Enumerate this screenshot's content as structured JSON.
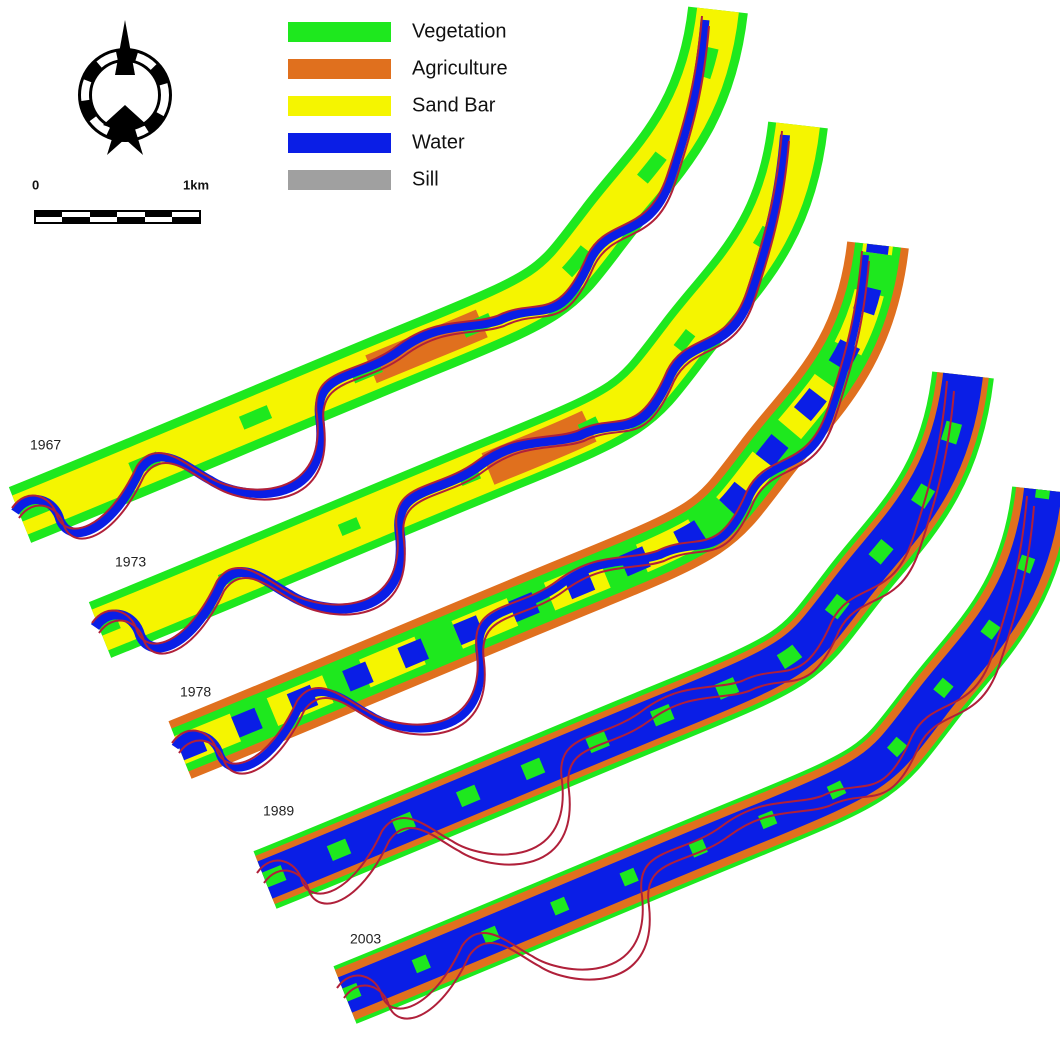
{
  "legend": {
    "items": [
      {
        "label": "Vegetation",
        "color": "#1ee81e"
      },
      {
        "label": "Agriculture",
        "color": "#e0701e"
      },
      {
        "label": "Sand Bar",
        "color": "#f5f500"
      },
      {
        "label": "Water",
        "color": "#0a1ee6"
      },
      {
        "label": "Sill",
        "color": "#a0a0a0"
      }
    ]
  },
  "scale": {
    "start": "0",
    "end": "1km"
  },
  "years": [
    "1967",
    "1973",
    "1978",
    "1989",
    "2003"
  ]
}
